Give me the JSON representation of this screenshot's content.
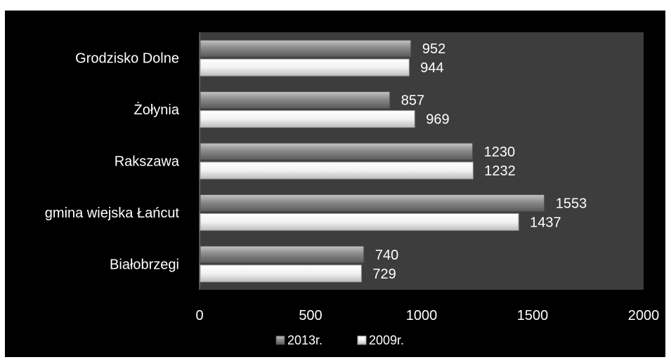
{
  "chart_data": {
    "type": "bar",
    "orientation": "horizontal",
    "categories": [
      "Grodzisko Dolne",
      "Żołynia",
      "Rakszawa",
      "gmina wiejska Łańcut",
      "Białobrzegi"
    ],
    "series": [
      {
        "name": "2013r.",
        "values": [
          952,
          857,
          1230,
          1553,
          740
        ],
        "color": "#8c8c8c"
      },
      {
        "name": "2009r.",
        "values": [
          944,
          969,
          1232,
          1437,
          729
        ],
        "color": "#ffffff"
      }
    ],
    "xlim": [
      0,
      2000
    ],
    "xticks": [
      "0",
      "500",
      "1000",
      "1500",
      "2000"
    ],
    "legend_position": "bottom",
    "grid": false,
    "colors": {
      "background": "#000000",
      "plot_area": "#3d3d3d",
      "text": "#ffffff"
    }
  }
}
